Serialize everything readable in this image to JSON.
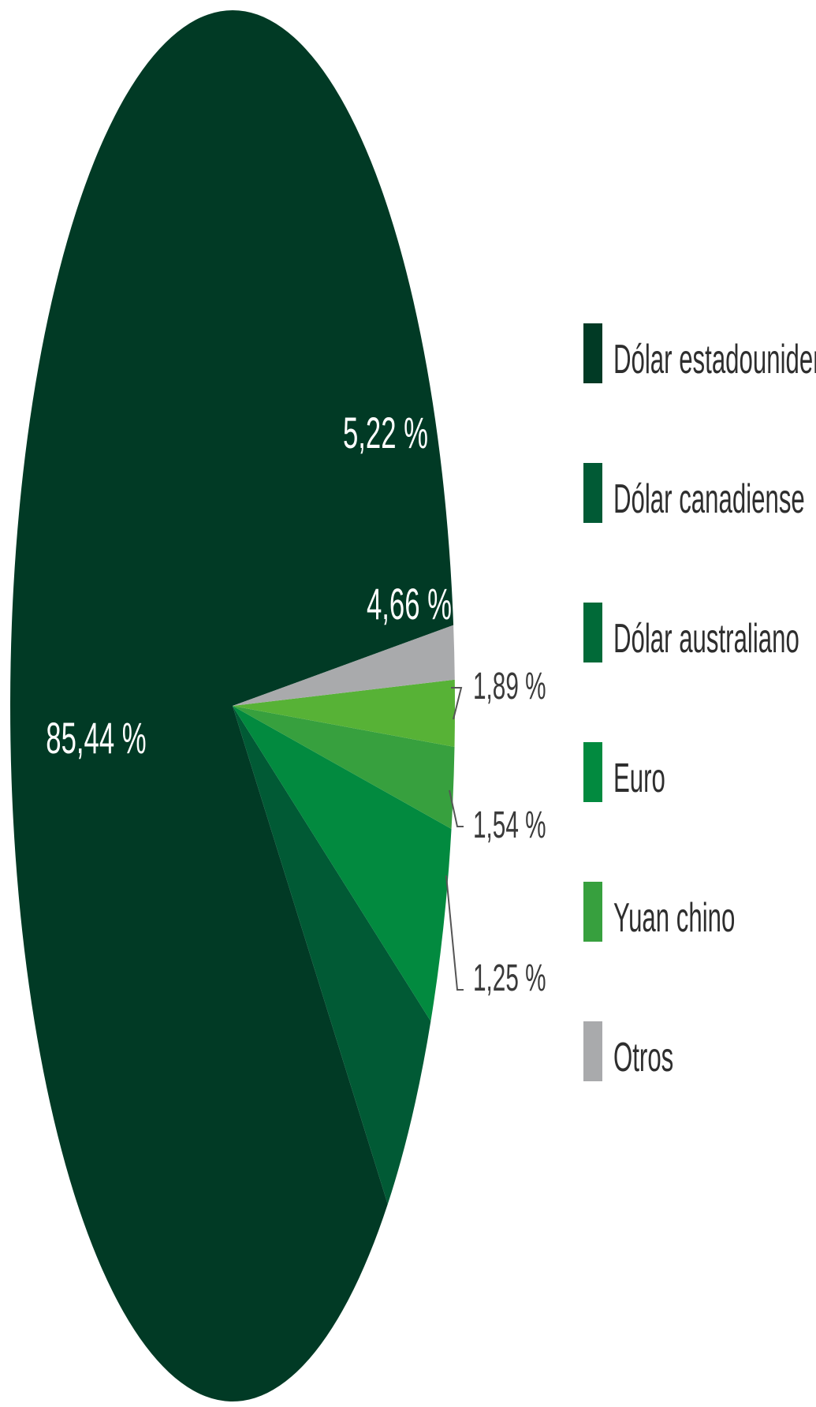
{
  "chart_data": {
    "type": "pie",
    "title": "",
    "slices": [
      {
        "name": "Dólar estadounidense",
        "label": "85,44 %",
        "value": 85.44,
        "color": "#013a25"
      },
      {
        "name": "Dólar canadiense",
        "label": "5,22 %",
        "value": 5.22,
        "color": "#015a35"
      },
      {
        "name": "Dólar australiano",
        "label": "4,66 %",
        "value": 4.66,
        "color": "#028a3f"
      },
      {
        "name": "Euro",
        "label": "1,89 %",
        "value": 1.89,
        "color": "#37a03e"
      },
      {
        "name": "Yuan chino",
        "label": "1,54 %",
        "value": 1.54,
        "color": "#57b236"
      },
      {
        "name": "Otros",
        "label": "1,25 %",
        "value": 1.25,
        "color": "#a9aaac"
      }
    ],
    "legend": {
      "position": "right",
      "items": [
        {
          "label": "Dólar estadounidense",
          "color": "#013a25"
        },
        {
          "label": "Dólar canadiense",
          "color": "#015a35"
        },
        {
          "label": "Dólar australiano",
          "color": "#016a38"
        },
        {
          "label": "Euro",
          "color": "#028a3f"
        },
        {
          "label": "Yuan chino",
          "color": "#37a03e"
        },
        {
          "label": "Otros",
          "color": "#a9aaac"
        }
      ]
    }
  }
}
